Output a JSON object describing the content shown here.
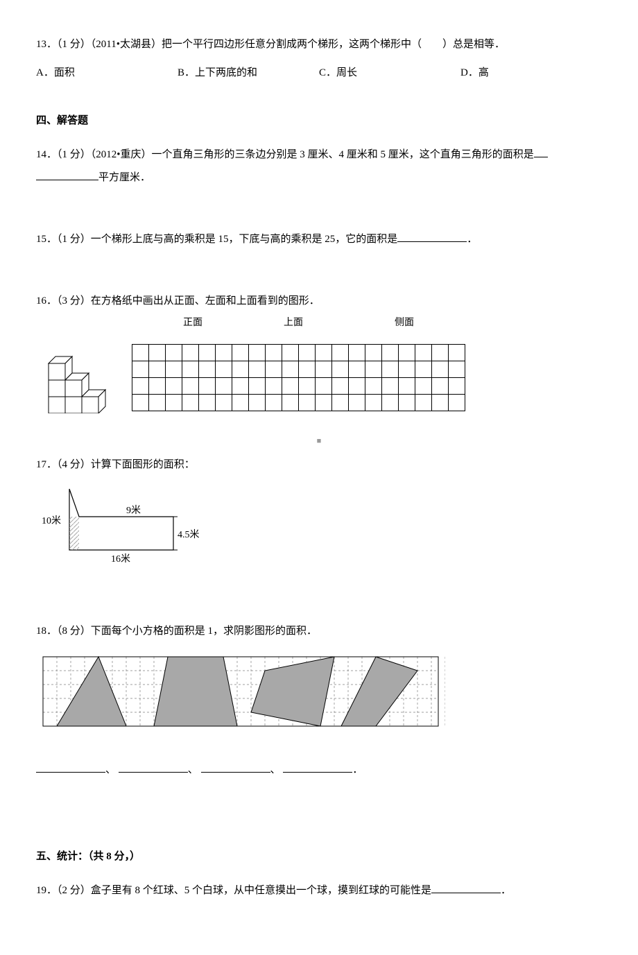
{
  "q13": {
    "text": "13．（1 分）（2011•太湖县）把一个平行四边形任意分割成两个梯形，这两个梯形中（　　）总是相等．",
    "options": {
      "a": "A．面积",
      "b": "B．上下两底的和",
      "c": "C．周长",
      "d": "D．高"
    }
  },
  "section4": "四、解答题",
  "q14": {
    "prefix": "14．（1 分）（2012•重庆）一个直角三角形的三条边分别是 3 厘米、4 厘米和 5 厘米，这个直角三角形的面积是",
    "suffix": "平方厘米．"
  },
  "q15": {
    "prefix": "15．（1 分）一个梯形上底与高的乘积是 15，下底与高的乘积是 25，它的面积是",
    "suffix": "．"
  },
  "q16": {
    "text": "16．（3 分）在方格纸中画出从正面、左面和上面看到的图形．",
    "headers": {
      "front": "正面",
      "top": "上面",
      "side": "侧面"
    },
    "grid": {
      "rows": 4,
      "cols": 20
    },
    "cube_colors": {
      "stroke": "#000000",
      "fill": "#ffffff"
    }
  },
  "q17": {
    "text": "17．（4 分）计算下面图形的面积：",
    "labels": {
      "left": "10米",
      "top": "9米",
      "bottom": "16米",
      "right": "4.5米"
    },
    "figure": {
      "stroke": "#000000",
      "hatch": "#b0b0b0"
    }
  },
  "pause": "■",
  "q18": {
    "text": "18．（8 分）下面每个小方格的面积是 1，求阴影图形的面积．",
    "sep": "、",
    "period": "．",
    "figure": {
      "grid_color": "#808080",
      "fill": "#a8a8a8",
      "stroke": "#000000",
      "cols": 29,
      "rows": 6,
      "cell": 20
    }
  },
  "section5": "五、统计：（共 8 分，）",
  "q19": {
    "prefix": "19．（2 分）盒子里有 8 个红球、5 个白球，从中任意摸出一个球，摸到红球的可能性是",
    "suffix": "．"
  }
}
